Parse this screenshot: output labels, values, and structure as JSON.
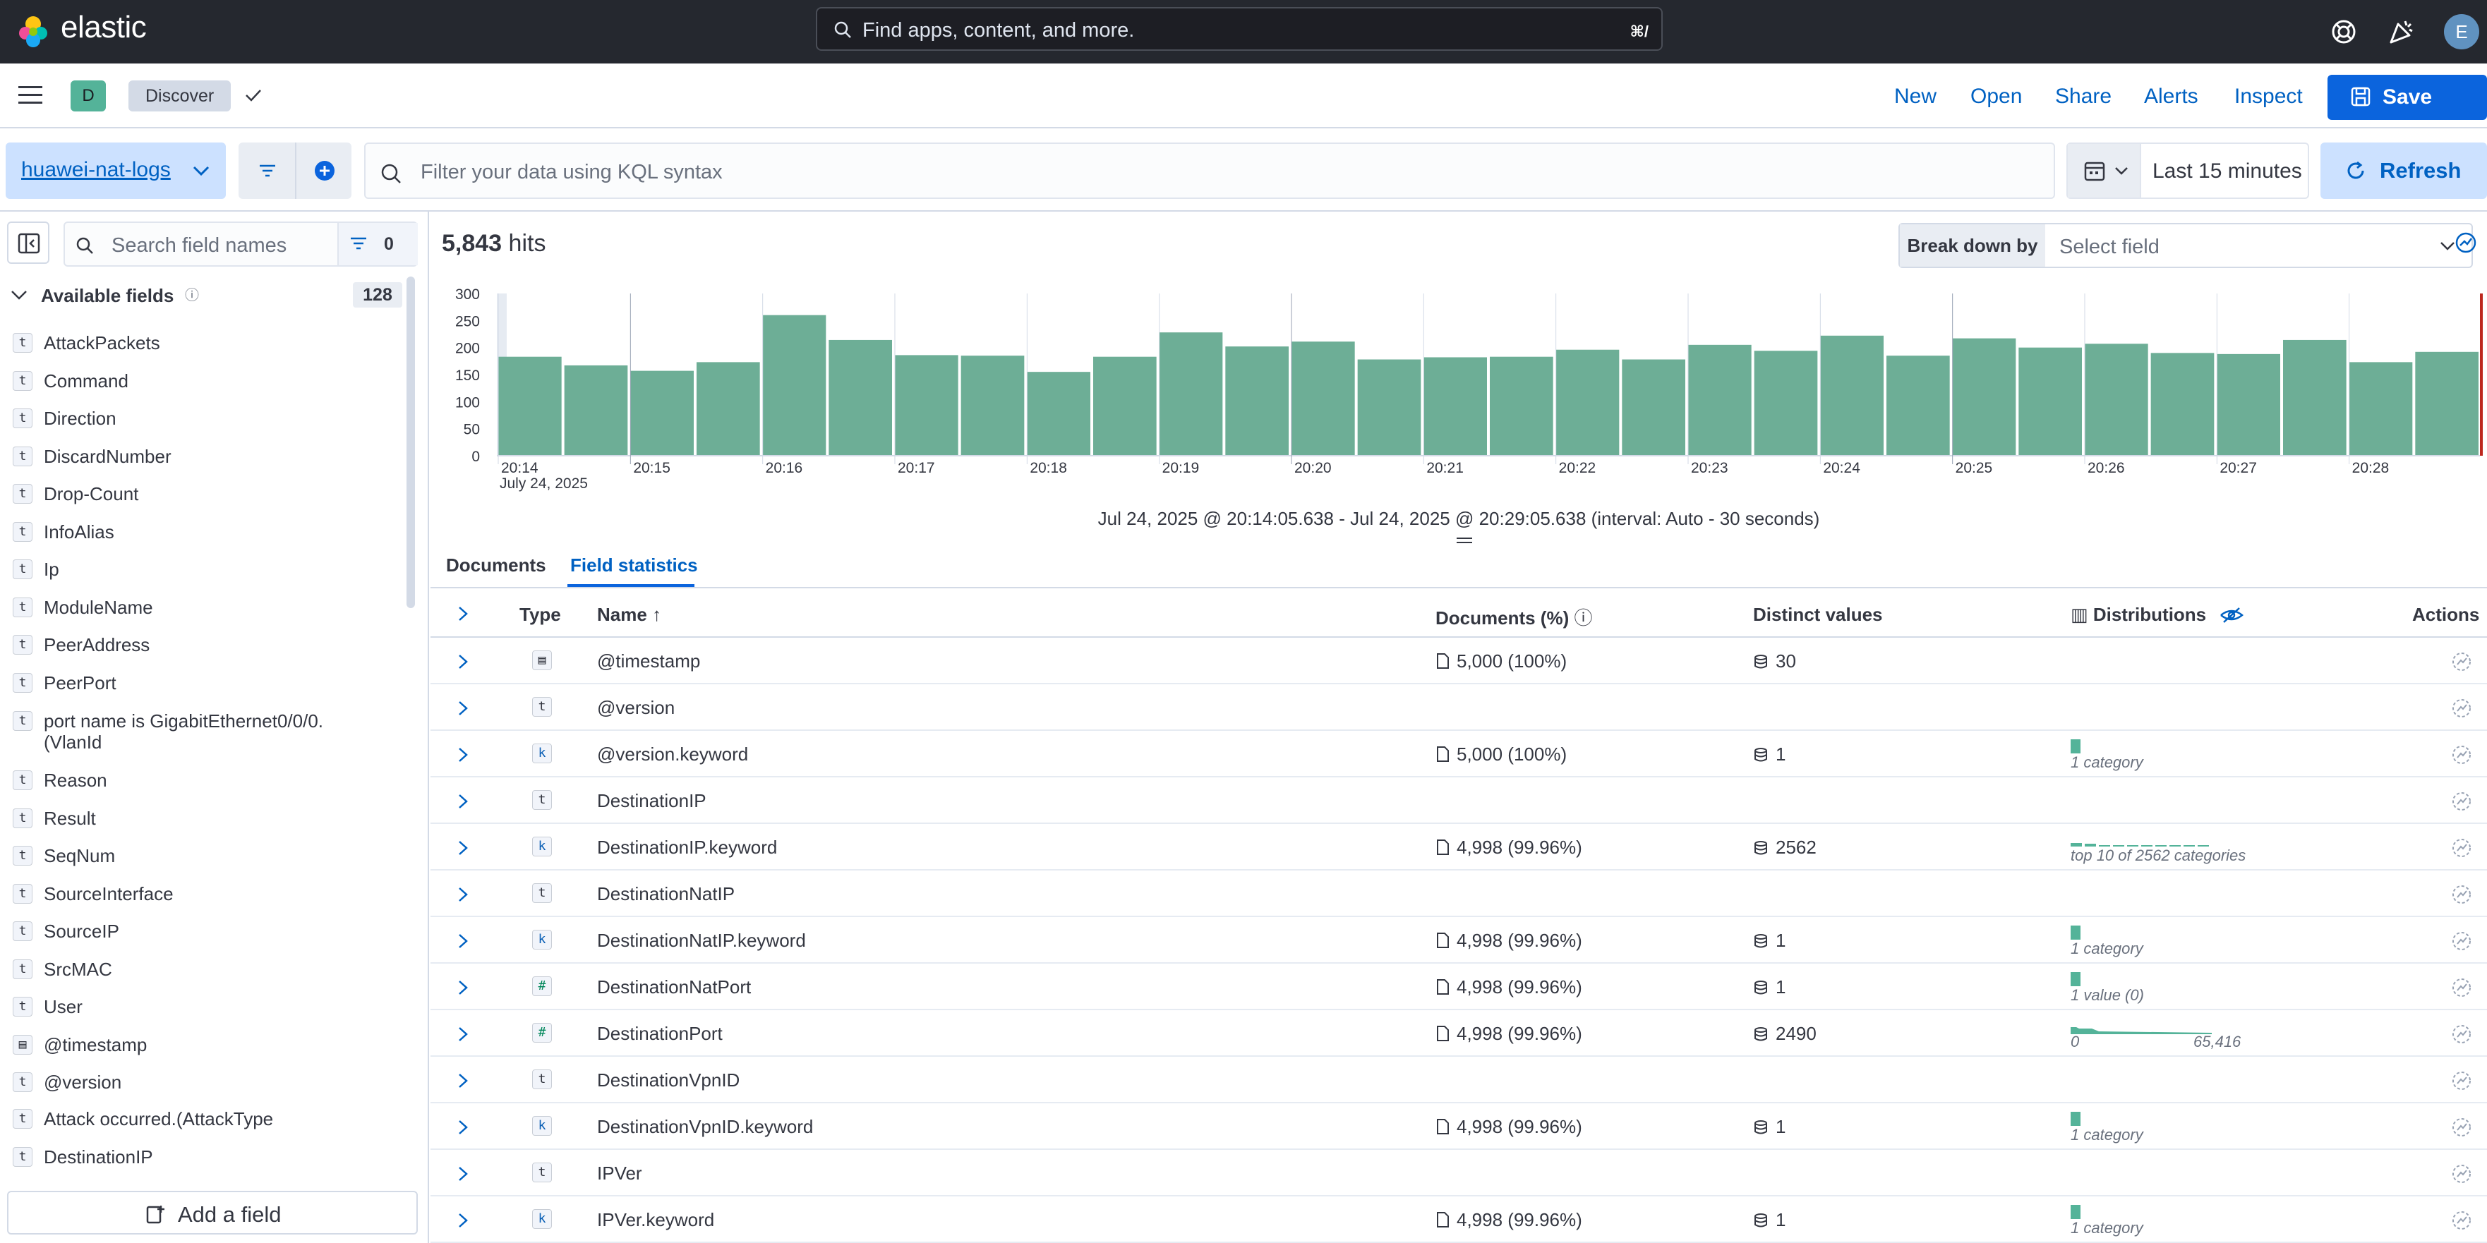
{
  "topbar": {
    "brand": "elastic",
    "search_placeholder": "Find apps, content, and more.",
    "search_shortcut": "⌘/",
    "user_initial": "E"
  },
  "appbar": {
    "space_initial": "D",
    "breadcrumb": "Discover",
    "links": [
      "New",
      "Open",
      "Share",
      "Alerts",
      "Inspect"
    ],
    "save_label": "Save"
  },
  "query": {
    "data_view": "huawei-nat-logs",
    "placeholder": "Filter your data using KQL syntax",
    "time_range": "Last 15 minutes",
    "refresh_label": "Refresh"
  },
  "sidebar": {
    "search_placeholder": "Search field names",
    "filter_count": "0",
    "available_label": "Available fields",
    "available_count": "128",
    "fields": [
      {
        "name": "AttackPackets",
        "type": "t"
      },
      {
        "name": "Command",
        "type": "t"
      },
      {
        "name": "Direction",
        "type": "t"
      },
      {
        "name": "DiscardNumber",
        "type": "t"
      },
      {
        "name": "Drop-Count",
        "type": "t"
      },
      {
        "name": "InfoAlias",
        "type": "t"
      },
      {
        "name": "Ip",
        "type": "t"
      },
      {
        "name": "ModuleName",
        "type": "t"
      },
      {
        "name": "PeerAddress",
        "type": "t"
      },
      {
        "name": "PeerPort",
        "type": "t"
      },
      {
        "name": "port name is GigabitEthernet0/0/0.",
        "name2": "(VlanId",
        "type": "t"
      },
      {
        "name": "Reason",
        "type": "t"
      },
      {
        "name": "Result",
        "type": "t"
      },
      {
        "name": "SeqNum",
        "type": "t"
      },
      {
        "name": "SourceInterface",
        "type": "t"
      },
      {
        "name": "SourceIP",
        "type": "t"
      },
      {
        "name": "SrcMAC",
        "type": "t"
      },
      {
        "name": "User",
        "type": "t"
      },
      {
        "name": "@timestamp",
        "type": "date"
      },
      {
        "name": "@version",
        "type": "t"
      },
      {
        "name": "Attack occurred.(AttackType",
        "type": "t"
      },
      {
        "name": "DestinationIP",
        "type": "t"
      }
    ],
    "add_field_label": "Add a field"
  },
  "main": {
    "hits_count": "5,843",
    "hits_label": "hits",
    "breakdown_label": "Break down by",
    "breakdown_placeholder": "Select field",
    "range_text": "Jul 24, 2025 @ 20:14:05.638 - Jul 24, 2025 @ 20:29:05.638 (interval: Auto - 30 seconds)",
    "tabs": [
      "Documents",
      "Field statistics"
    ]
  },
  "chart_data": {
    "type": "bar",
    "y_ticks": [
      "300",
      "250",
      "200",
      "150",
      "100",
      "50",
      "0"
    ],
    "ylim": [
      0,
      300
    ],
    "x_tick_labels": [
      "20:14",
      "20:15",
      "20:16",
      "20:17",
      "20:18",
      "20:19",
      "20:20",
      "20:21",
      "20:22",
      "20:23",
      "20:24",
      "20:25",
      "20:26",
      "20:27",
      "20:28"
    ],
    "x_date_label": "July 24, 2025",
    "values": [
      183,
      167,
      157,
      173,
      260,
      214,
      186,
      185,
      155,
      183,
      228,
      202,
      211,
      178,
      182,
      183,
      196,
      178,
      205,
      194,
      222,
      185,
      217,
      200,
      207,
      190,
      188,
      214,
      173,
      192
    ],
    "color": "#6dae96"
  },
  "table": {
    "headers": {
      "type": "Type",
      "name": "Name",
      "docs": "Documents (%)",
      "distinct": "Distinct values",
      "dist": "Distributions",
      "actions": "Actions"
    },
    "rows": [
      {
        "type": "date",
        "name": "@timestamp",
        "docs": "5,000 (100%)",
        "distinct": "30",
        "dist": ""
      },
      {
        "type": "t",
        "name": "@version",
        "docs": "",
        "distinct": "",
        "dist": ""
      },
      {
        "type": "k",
        "name": "@version.keyword",
        "docs": "5,000 (100%)",
        "distinct": "1",
        "dist": "1 category"
      },
      {
        "type": "t",
        "name": "DestinationIP",
        "docs": "",
        "distinct": "",
        "dist": ""
      },
      {
        "type": "k",
        "name": "DestinationIP.keyword",
        "docs": "4,998 (99.96%)",
        "distinct": "2562",
        "dist": "top 10 of 2562 categories"
      },
      {
        "type": "t",
        "name": "DestinationNatIP",
        "docs": "",
        "distinct": "",
        "dist": ""
      },
      {
        "type": "k",
        "name": "DestinationNatIP.keyword",
        "docs": "4,998 (99.96%)",
        "distinct": "1",
        "dist": "1 category"
      },
      {
        "type": "#",
        "name": "DestinationNatPort",
        "docs": "4,998 (99.96%)",
        "distinct": "1",
        "dist": "1 value (0)"
      },
      {
        "type": "#",
        "name": "DestinationPort",
        "docs": "4,998 (99.96%)",
        "distinct": "2490",
        "dist": "0",
        "dist_max": "65,416"
      },
      {
        "type": "t",
        "name": "DestinationVpnID",
        "docs": "",
        "distinct": "",
        "dist": ""
      },
      {
        "type": "k",
        "name": "DestinationVpnID.keyword",
        "docs": "4,998 (99.96%)",
        "distinct": "1",
        "dist": "1 category"
      },
      {
        "type": "t",
        "name": "IPVer",
        "docs": "",
        "distinct": "",
        "dist": ""
      },
      {
        "type": "k",
        "name": "IPVer.keyword",
        "docs": "4,998 (99.96%)",
        "distinct": "1",
        "dist": "1 category"
      }
    ]
  }
}
